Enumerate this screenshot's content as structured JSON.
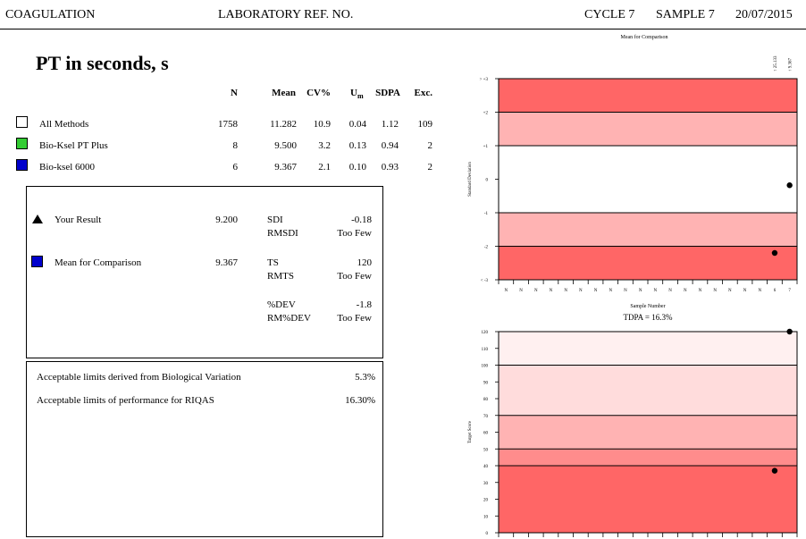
{
  "header": {
    "discipline": "COAGULATION",
    "lab_ref": "LABORATORY REF. NO.",
    "cycle": "CYCLE 7",
    "sample": "SAMPLE 7",
    "date": "20/07/2015"
  },
  "title": "PT in seconds, s",
  "stats_table": {
    "headers": {
      "n": "N",
      "mean": "Mean",
      "cv": "CV%",
      "um": "U",
      "um_sub": "m",
      "sdpa": "SDPA",
      "exc": "Exc."
    },
    "rows": [
      {
        "label": "All Methods",
        "n": "1758",
        "mean": "11.282",
        "cv": "10.9",
        "um": "0.04",
        "sdpa": "1.12",
        "exc": "109",
        "color": "#ffffff"
      },
      {
        "label": "Bio-Ksel PT Plus",
        "n": "8",
        "mean": "9.500",
        "cv": "3.2",
        "um": "0.13",
        "sdpa": "0.94",
        "exc": "2",
        "color": "#33cc33"
      },
      {
        "label": "Bio-ksel 6000",
        "n": "6",
        "mean": "9.367",
        "cv": "2.1",
        "um": "0.10",
        "sdpa": "0.93",
        "exc": "2",
        "color": "#0000cc"
      }
    ]
  },
  "result_box": {
    "your_result_label": "Your Result",
    "your_result_value": "9.200",
    "mean_label": "Mean for Comparison",
    "mean_value": "9.367",
    "sdi_label": "SDI",
    "sdi_value": "-0.18",
    "rmsdi_label": "RMSDI",
    "rmsdi_value": "Too Few",
    "ts_label": "TS",
    "ts_value": "120",
    "rmts_label": "RMTS",
    "rmts_value": "Too Few",
    "dev_label": "%DEV",
    "dev_value": "-1.8",
    "rmdev_label": "RM%DEV",
    "rmdev_value": "Too Few",
    "mean_marker_color": "#0000cc"
  },
  "limits_box": {
    "bio_label": "Acceptable limits derived from Biological Variation",
    "bio_value": "5.3%",
    "perf_label": "Acceptable limits of performance for  RIQAS",
    "perf_value": "16.30%"
  },
  "chart_data": [
    {
      "type": "scatter",
      "title": "Mean for Comparison",
      "xlabel": "Sample Number",
      "ylabel": "Standard Deviation",
      "y_tick_labels": [
        "> +3",
        "+2",
        "+1",
        "0",
        "-1",
        "-2",
        "< -3"
      ],
      "x_tick_labels": [
        "N",
        "N",
        "N",
        "N",
        "N",
        "N",
        "N",
        "N",
        "N",
        "N",
        "N",
        "N",
        "N",
        "N",
        "N",
        "N",
        "N",
        "N",
        "6",
        "7"
      ],
      "top_value_labels": [
        "↑ 25.133",
        "↑ 9.367"
      ],
      "ylim": [
        -3,
        3
      ],
      "bands": [
        {
          "from": 2,
          "to": 3,
          "color": "#ff6666"
        },
        {
          "from": 1,
          "to": 2,
          "color": "#ffb3b3"
        },
        {
          "from": -1,
          "to": 1,
          "color": "#ffffff"
        },
        {
          "from": -2,
          "to": -1,
          "color": "#ffb3b3"
        },
        {
          "from": -3,
          "to": -2,
          "color": "#ff6666"
        }
      ],
      "points": [
        {
          "x": 19,
          "y": -2.2
        },
        {
          "x": 20,
          "y": -0.18
        }
      ]
    },
    {
      "type": "scatter",
      "title": "TDPA = 16.3%",
      "ylabel": "Target Score",
      "y_tick_labels": [
        "120",
        "110",
        "100",
        "90",
        "80",
        "70",
        "60",
        "50",
        "40",
        "30",
        "20",
        "10",
        "0"
      ],
      "ylim": [
        0,
        120
      ],
      "bands": [
        {
          "from": 100,
          "to": 120,
          "color": "#fff0f0"
        },
        {
          "from": 70,
          "to": 100,
          "color": "#ffdcdc"
        },
        {
          "from": 50,
          "to": 70,
          "color": "#ffb3b3"
        },
        {
          "from": 40,
          "to": 50,
          "color": "#ff8c8c"
        },
        {
          "from": 0,
          "to": 40,
          "color": "#ff6666"
        }
      ],
      "points": [
        {
          "x": 19,
          "y": 37
        },
        {
          "x": 20,
          "y": 120
        }
      ]
    }
  ]
}
